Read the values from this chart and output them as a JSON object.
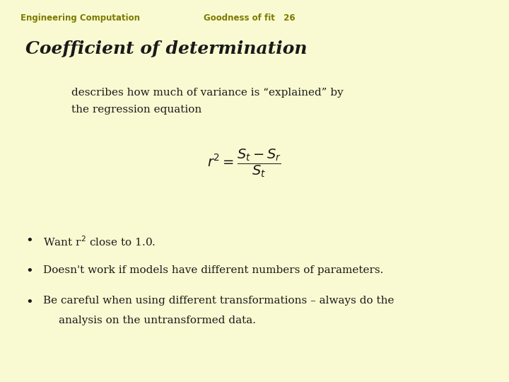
{
  "background_color": "#fafad2",
  "header_left": "Engineering Computation",
  "header_center": "Goodness of fit   26",
  "header_color": "#7b7b00",
  "header_fontsize": 8.5,
  "title": "Coefficient of determination",
  "title_fontsize": 18,
  "title_color": "#1a1a1a",
  "subtitle_line1": "describes how much of variance is “explained” by",
  "subtitle_line2": "the regression equation",
  "subtitle_fontsize": 11,
  "subtitle_color": "#1a1a1a",
  "formula": "$r^2 = \\dfrac{S_t - S_r}{S_t}$",
  "formula_fontsize": 14,
  "bullet1": "Want r$^2$ close to 1.0.",
  "bullet2": "Doesn't work if models have different numbers of parameters.",
  "bullet3a": "Be careful when using different transformations – always do the",
  "bullet3b": "analysis on the untransformed data.",
  "bullet_fontsize": 11,
  "bullet_color": "#1a1a1a"
}
